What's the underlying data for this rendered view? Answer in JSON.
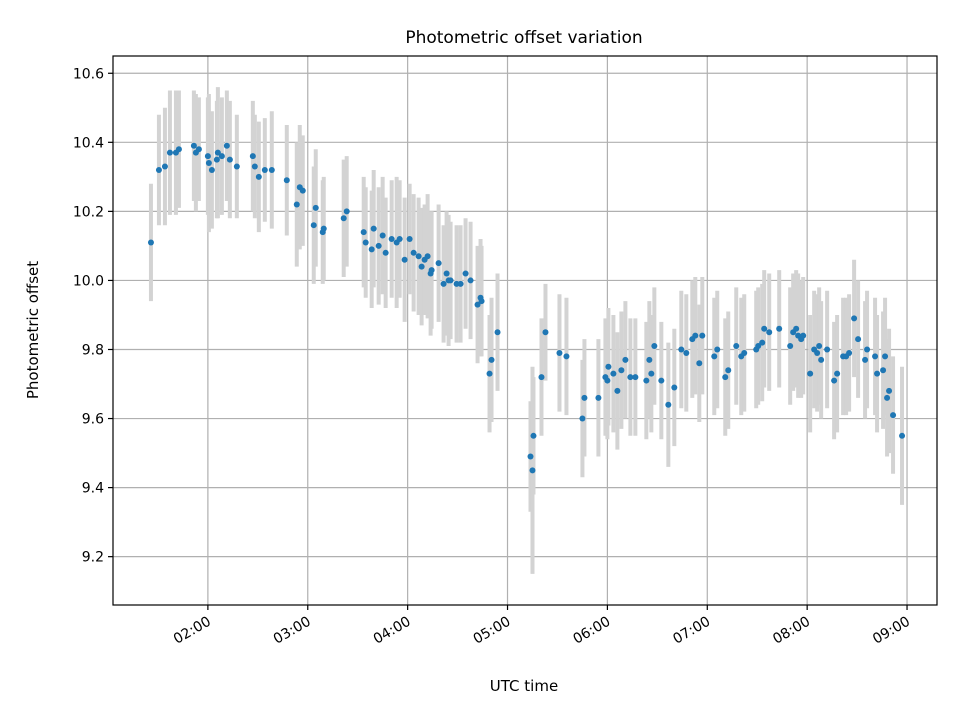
{
  "chart_data": {
    "type": "scatter",
    "title": "Photometric offset variation",
    "xlabel": "UTC time",
    "ylabel": "Photometric offset",
    "x_unit": "hours UTC",
    "xlim": [
      1.05,
      9.3
    ],
    "ylim": [
      9.06,
      10.65
    ],
    "x_ticks": [
      {
        "value": 2,
        "label": "02:00"
      },
      {
        "value": 3,
        "label": "03:00"
      },
      {
        "value": 4,
        "label": "04:00"
      },
      {
        "value": 5,
        "label": "05:00"
      },
      {
        "value": 6,
        "label": "06:00"
      },
      {
        "value": 7,
        "label": "07:00"
      },
      {
        "value": 8,
        "label": "08:00"
      },
      {
        "value": 9,
        "label": "09:00"
      }
    ],
    "y_ticks": [
      {
        "value": 9.2,
        "label": "9.2"
      },
      {
        "value": 9.4,
        "label": "9.4"
      },
      {
        "value": 9.6,
        "label": "9.6"
      },
      {
        "value": 9.8,
        "label": "9.8"
      },
      {
        "value": 10.0,
        "label": "10.0"
      },
      {
        "value": 10.2,
        "label": "10.2"
      },
      {
        "value": 10.4,
        "label": "10.4"
      },
      {
        "value": 10.6,
        "label": "10.6"
      }
    ],
    "grid": true,
    "colors": {
      "points": "#1f77b4",
      "error_bars": "#d3d3d3",
      "grid": "#b0b0b0"
    },
    "series": [
      {
        "points": [
          [
            1.43,
            10.11,
            0.17
          ],
          [
            1.51,
            10.32,
            0.16
          ],
          [
            1.57,
            10.33,
            0.17
          ],
          [
            1.62,
            10.37,
            0.18
          ],
          [
            1.68,
            10.37,
            0.18
          ],
          [
            1.71,
            10.38,
            0.17
          ],
          [
            1.86,
            10.39,
            0.16
          ],
          [
            1.88,
            10.37,
            0.17
          ],
          [
            1.91,
            10.38,
            0.15
          ],
          [
            2.0,
            10.36,
            0.17
          ],
          [
            2.01,
            10.34,
            0.2
          ],
          [
            2.04,
            10.32,
            0.17
          ],
          [
            2.09,
            10.35,
            0.17
          ],
          [
            2.1,
            10.37,
            0.19
          ],
          [
            2.14,
            10.36,
            0.17
          ],
          [
            2.19,
            10.39,
            0.16
          ],
          [
            2.22,
            10.35,
            0.17
          ],
          [
            2.29,
            10.33,
            0.15
          ],
          [
            2.45,
            10.36,
            0.16
          ],
          [
            2.47,
            10.33,
            0.15
          ],
          [
            2.51,
            10.3,
            0.16
          ],
          [
            2.57,
            10.32,
            0.15
          ],
          [
            2.64,
            10.32,
            0.17
          ],
          [
            2.79,
            10.29,
            0.16
          ],
          [
            2.89,
            10.22,
            0.18
          ],
          [
            2.92,
            10.27,
            0.18
          ],
          [
            2.95,
            10.26,
            0.16
          ],
          [
            3.06,
            10.16,
            0.17
          ],
          [
            3.08,
            10.21,
            0.17
          ],
          [
            3.15,
            10.14,
            0.15
          ],
          [
            3.16,
            10.15,
            0.15
          ],
          [
            3.36,
            10.18,
            0.17
          ],
          [
            3.39,
            10.2,
            0.16
          ],
          [
            3.56,
            10.14,
            0.16
          ],
          [
            3.58,
            10.11,
            0.16
          ],
          [
            3.64,
            10.09,
            0.17
          ],
          [
            3.66,
            10.15,
            0.17
          ],
          [
            3.71,
            10.1,
            0.17
          ],
          [
            3.75,
            10.13,
            0.17
          ],
          [
            3.78,
            10.08,
            0.16
          ],
          [
            3.84,
            10.12,
            0.17
          ],
          [
            3.89,
            10.11,
            0.19
          ],
          [
            3.92,
            10.12,
            0.17
          ],
          [
            3.97,
            10.06,
            0.18
          ],
          [
            4.02,
            10.12,
            0.16
          ],
          [
            4.06,
            10.08,
            0.17
          ],
          [
            4.11,
            10.07,
            0.17
          ],
          [
            4.14,
            10.04,
            0.17
          ],
          [
            4.17,
            10.06,
            0.16
          ],
          [
            4.2,
            10.07,
            0.18
          ],
          [
            4.23,
            10.02,
            0.18
          ],
          [
            4.24,
            10.03,
            0.17
          ],
          [
            4.31,
            10.05,
            0.17
          ],
          [
            4.36,
            9.99,
            0.17
          ],
          [
            4.39,
            10.02,
            0.18
          ],
          [
            4.41,
            10.0,
            0.19
          ],
          [
            4.43,
            10.0,
            0.17
          ],
          [
            4.49,
            9.99,
            0.17
          ],
          [
            4.53,
            9.99,
            0.17
          ],
          [
            4.58,
            10.02,
            0.16
          ],
          [
            4.63,
            10.0,
            0.17
          ],
          [
            4.7,
            9.93,
            0.17
          ],
          [
            4.73,
            9.95,
            0.17
          ],
          [
            4.74,
            9.94,
            0.16
          ],
          [
            4.82,
            9.73,
            0.17
          ],
          [
            4.84,
            9.77,
            0.18
          ],
          [
            4.9,
            9.85,
            0.17
          ],
          [
            5.23,
            9.49,
            0.16
          ],
          [
            5.25,
            9.45,
            0.3
          ],
          [
            5.26,
            9.55,
            0.17
          ],
          [
            5.34,
            9.72,
            0.17
          ],
          [
            5.38,
            9.85,
            0.14
          ],
          [
            5.52,
            9.79,
            0.17
          ],
          [
            5.59,
            9.78,
            0.17
          ],
          [
            5.75,
            9.6,
            0.17
          ],
          [
            5.77,
            9.66,
            0.17
          ],
          [
            5.91,
            9.66,
            0.17
          ],
          [
            5.98,
            9.72,
            0.17
          ],
          [
            6.0,
            9.71,
            0.17
          ],
          [
            6.01,
            9.75,
            0.17
          ],
          [
            6.06,
            9.73,
            0.17
          ],
          [
            6.1,
            9.68,
            0.17
          ],
          [
            6.14,
            9.74,
            0.17
          ],
          [
            6.18,
            9.77,
            0.17
          ],
          [
            6.23,
            9.72,
            0.17
          ],
          [
            6.28,
            9.72,
            0.17
          ],
          [
            6.39,
            9.71,
            0.17
          ],
          [
            6.42,
            9.77,
            0.17
          ],
          [
            6.44,
            9.73,
            0.17
          ],
          [
            6.47,
            9.81,
            0.17
          ],
          [
            6.54,
            9.71,
            0.17
          ],
          [
            6.61,
            9.64,
            0.18
          ],
          [
            6.67,
            9.69,
            0.17
          ],
          [
            6.74,
            9.8,
            0.17
          ],
          [
            6.79,
            9.79,
            0.17
          ],
          [
            6.85,
            9.83,
            0.17
          ],
          [
            6.88,
            9.84,
            0.17
          ],
          [
            6.92,
            9.76,
            0.17
          ],
          [
            6.95,
            9.84,
            0.17
          ],
          [
            7.07,
            9.78,
            0.17
          ],
          [
            7.1,
            9.8,
            0.17
          ],
          [
            7.18,
            9.72,
            0.17
          ],
          [
            7.21,
            9.74,
            0.17
          ],
          [
            7.29,
            9.81,
            0.17
          ],
          [
            7.34,
            9.78,
            0.17
          ],
          [
            7.37,
            9.79,
            0.17
          ],
          [
            7.49,
            9.8,
            0.17
          ],
          [
            7.51,
            9.81,
            0.17
          ],
          [
            7.55,
            9.82,
            0.17
          ],
          [
            7.57,
            9.86,
            0.17
          ],
          [
            7.62,
            9.85,
            0.17
          ],
          [
            7.72,
            9.86,
            0.17
          ],
          [
            7.83,
            9.81,
            0.17
          ],
          [
            7.86,
            9.85,
            0.17
          ],
          [
            7.89,
            9.86,
            0.17
          ],
          [
            7.91,
            9.84,
            0.18
          ],
          [
            7.94,
            9.83,
            0.17
          ],
          [
            7.96,
            9.84,
            0.17
          ],
          [
            8.03,
            9.73,
            0.17
          ],
          [
            8.07,
            9.8,
            0.17
          ],
          [
            8.1,
            9.79,
            0.17
          ],
          [
            8.12,
            9.81,
            0.17
          ],
          [
            8.14,
            9.77,
            0.17
          ],
          [
            8.2,
            9.8,
            0.17
          ],
          [
            8.27,
            9.71,
            0.17
          ],
          [
            8.3,
            9.73,
            0.17
          ],
          [
            8.36,
            9.78,
            0.17
          ],
          [
            8.39,
            9.78,
            0.17
          ],
          [
            8.42,
            9.79,
            0.17
          ],
          [
            8.47,
            9.89,
            0.17
          ],
          [
            8.51,
            9.83,
            0.17
          ],
          [
            8.58,
            9.77,
            0.17
          ],
          [
            8.6,
            9.8,
            0.17
          ],
          [
            8.68,
            9.78,
            0.17
          ],
          [
            8.7,
            9.73,
            0.17
          ],
          [
            8.76,
            9.74,
            0.17
          ],
          [
            8.78,
            9.78,
            0.17
          ],
          [
            8.8,
            9.66,
            0.17
          ],
          [
            8.82,
            9.68,
            0.18
          ],
          [
            8.86,
            9.61,
            0.17
          ],
          [
            8.95,
            9.55,
            0.2
          ]
        ]
      }
    ]
  }
}
